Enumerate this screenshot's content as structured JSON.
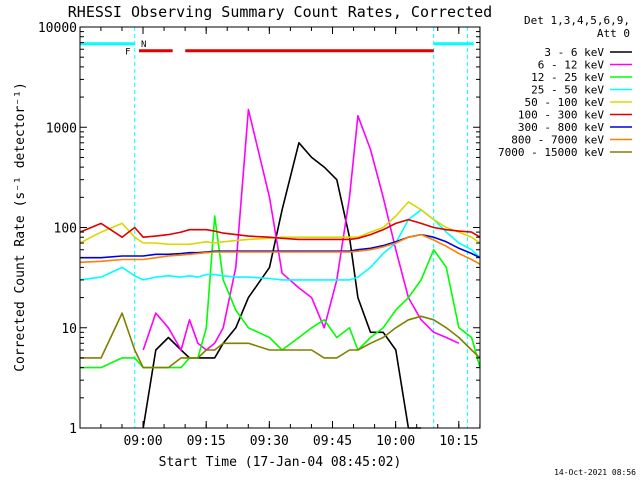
{
  "chart_data": {
    "type": "line",
    "title": "RHESSI Observing Summary Count Rates, Corrected",
    "xlabel": "Start Time (17-Jan-04 08:45:02)",
    "ylabel": "Corrected Count Rate (s⁻¹ detector⁻¹)",
    "yscale": "log",
    "ylim": [
      1,
      10000
    ],
    "xlim_minutes_after_start": [
      0,
      95
    ],
    "x_ticks": [
      "09:00",
      "09:15",
      "09:30",
      "09:45",
      "10:00",
      "10:15"
    ],
    "y_ticks": [
      "1",
      "10",
      "100",
      "1000",
      "10000"
    ],
    "legend_header": [
      "Det 1,3,4,5,6,9,",
      "Att 0"
    ],
    "legend_position": "right",
    "timestamp": "14-Oct-2021 08:56",
    "flags": {
      "F": "F",
      "N": "N"
    },
    "x_minutes": [
      0,
      5,
      10,
      13,
      15,
      18,
      21,
      24,
      26,
      28,
      30,
      32,
      34,
      37,
      40,
      45,
      48,
      52,
      55,
      58,
      61,
      64,
      66,
      69,
      72,
      75,
      78,
      81,
      84,
      87,
      90,
      93,
      95
    ],
    "series": [
      {
        "name": "3 - 6 keV",
        "color": "#000000",
        "values": [
          null,
          null,
          null,
          null,
          1,
          6,
          8,
          6,
          5,
          5,
          5,
          5,
          7,
          10,
          20,
          40,
          150,
          700,
          500,
          400,
          300,
          80,
          20,
          9,
          9,
          6,
          1,
          1,
          null,
          null,
          null,
          null,
          null
        ]
      },
      {
        "name": "6 - 12 keV",
        "color": "#ff00ff",
        "values": [
          null,
          null,
          null,
          null,
          6,
          14,
          10,
          6,
          12,
          7,
          6,
          7,
          10,
          40,
          1500,
          200,
          35,
          25,
          20,
          10,
          30,
          200,
          1300,
          600,
          200,
          60,
          20,
          12,
          9,
          8,
          7,
          null,
          null
        ]
      },
      {
        "name": "12 - 25 keV",
        "color": "#00ff00",
        "values": [
          4,
          4,
          5,
          5,
          4,
          4,
          4,
          4,
          5,
          5,
          10,
          130,
          30,
          15,
          10,
          8,
          6,
          8,
          10,
          12,
          8,
          10,
          6,
          8,
          10,
          15,
          20,
          30,
          60,
          40,
          10,
          8,
          4
        ]
      },
      {
        "name": "25 - 50 keV",
        "color": "#00ffff",
        "values": [
          30,
          32,
          40,
          33,
          30,
          32,
          33,
          32,
          33,
          32,
          34,
          34,
          33,
          32,
          32,
          31,
          30,
          30,
          30,
          30,
          30,
          30,
          32,
          40,
          55,
          70,
          120,
          150,
          120,
          90,
          70,
          60,
          50
        ]
      },
      {
        "name": "50 - 100 keV",
        "color": "#d8d800",
        "values": [
          70,
          90,
          110,
          80,
          70,
          70,
          68,
          68,
          68,
          70,
          72,
          70,
          72,
          74,
          76,
          78,
          80,
          80,
          80,
          80,
          80,
          80,
          80,
          90,
          100,
          130,
          180,
          150,
          120,
          100,
          90,
          80,
          70
        ]
      },
      {
        "name": "100 - 300 keV",
        "color": "#e00000",
        "values": [
          90,
          110,
          80,
          100,
          80,
          82,
          85,
          90,
          95,
          95,
          95,
          92,
          88,
          85,
          82,
          80,
          78,
          76,
          76,
          76,
          76,
          76,
          78,
          85,
          95,
          110,
          120,
          110,
          100,
          95,
          92,
          90,
          80
        ]
      },
      {
        "name": "300 - 800 keV",
        "color": "#0000e0",
        "values": [
          50,
          50,
          52,
          52,
          52,
          54,
          54,
          55,
          56,
          56,
          57,
          58,
          58,
          58,
          58,
          58,
          58,
          58,
          58,
          58,
          58,
          58,
          60,
          62,
          66,
          72,
          80,
          85,
          80,
          72,
          62,
          55,
          50
        ]
      },
      {
        "name": "800 - 7000 keV",
        "color": "#ff8000",
        "values": [
          45,
          46,
          48,
          48,
          48,
          50,
          52,
          53,
          54,
          55,
          56,
          57,
          57,
          57,
          57,
          57,
          57,
          57,
          57,
          57,
          57,
          57,
          58,
          60,
          64,
          70,
          80,
          85,
          75,
          65,
          55,
          48,
          43
        ]
      },
      {
        "name": "7000 - 15000 keV",
        "color": "#808000",
        "values": [
          5,
          5,
          14,
          6,
          4,
          4,
          4,
          5,
          5,
          5,
          6,
          6,
          7,
          7,
          7,
          6,
          6,
          6,
          6,
          5,
          5,
          6,
          6,
          7,
          8,
          10,
          12,
          13,
          12,
          10,
          8,
          6,
          5
        ]
      }
    ]
  }
}
